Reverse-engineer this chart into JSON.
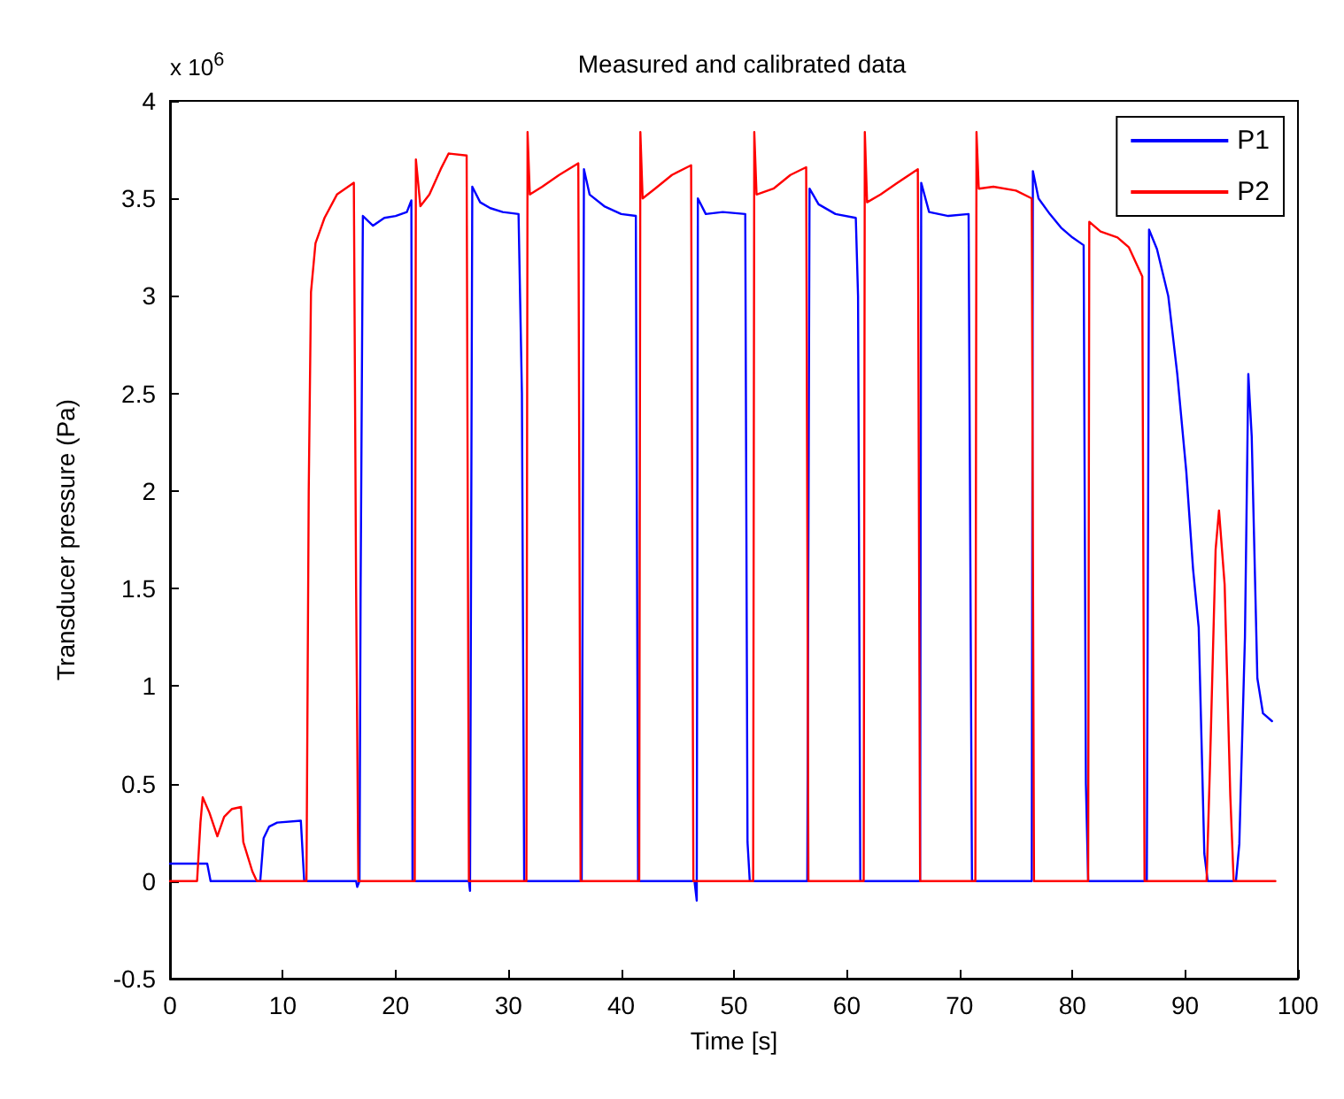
{
  "chart_data": {
    "type": "line",
    "title": "Measured and calibrated data",
    "xlabel": "Time [s]",
    "ylabel": "Transducer pressure (Pa)",
    "annotations": [
      "x 10$^{6}$"
    ],
    "xlim": [
      0,
      100
    ],
    "xticks": [
      0,
      10,
      20,
      30,
      40,
      50,
      60,
      70,
      80,
      90,
      100
    ],
    "ylim": [
      -0.5,
      4
    ],
    "yticks": [
      -0.5,
      0,
      0.5,
      1,
      1.5,
      2,
      2.5,
      3,
      3.5,
      4
    ],
    "grid": false,
    "legend": "top right",
    "marker": "none",
    "line_style": "solid",
    "series": [
      {
        "name": "P1",
        "color": "#0000ff",
        "x": [
          0,
          3.3,
          3.6,
          8,
          8.3,
          8.8,
          9.5,
          11.6,
          11.9,
          16.5,
          16.6,
          16.8,
          16.9,
          17.1,
          18,
          19,
          20,
          21,
          21.4,
          21.5,
          26.5,
          26.6,
          26.8,
          27.5,
          28.4,
          29.5,
          30.9,
          31.2,
          31.4,
          36.5,
          36.7,
          37.2,
          38.5,
          40,
          41.3,
          41.5,
          46.5,
          46.7,
          46.8,
          47.5,
          49,
          51,
          51.2,
          51.4,
          56.5,
          56.7,
          57.5,
          59,
          60.8,
          61,
          61.2,
          66.5,
          66.6,
          67.3,
          69,
          70.8,
          71.1,
          76.4,
          76.5,
          77,
          78,
          79,
          80,
          81,
          81.2,
          81.4,
          86.6,
          86.8,
          87.5,
          88.5,
          89.3,
          90.1,
          90.7,
          91.2,
          91.7,
          92,
          94.5,
          94.8,
          95.3,
          95.6,
          95.9,
          96.4,
          96.9,
          97.7
        ],
        "values": [
          0.09,
          0.09,
          0,
          0,
          0.22,
          0.28,
          0.3,
          0.31,
          0,
          0,
          -0.03,
          0,
          1.5,
          3.41,
          3.36,
          3.4,
          3.41,
          3.43,
          3.49,
          0,
          0,
          -0.05,
          3.56,
          3.48,
          3.45,
          3.43,
          3.42,
          2.5,
          0,
          0,
          3.65,
          3.52,
          3.46,
          3.42,
          3.41,
          0,
          0,
          -0.1,
          3.5,
          3.42,
          3.43,
          3.42,
          0.2,
          0,
          0,
          3.55,
          3.47,
          3.42,
          3.4,
          3.0,
          0,
          0,
          3.58,
          3.43,
          3.41,
          3.42,
          0,
          0,
          3.64,
          3.5,
          3.42,
          3.35,
          3.3,
          3.26,
          0.5,
          0,
          0,
          3.34,
          3.24,
          3.0,
          2.6,
          2.1,
          1.6,
          1.3,
          0.14,
          0,
          0,
          0.19,
          1.25,
          2.6,
          2.28,
          1.04,
          0.86,
          0.82
        ]
      },
      {
        "name": "P2",
        "color": "#ff0000",
        "x": [
          0,
          2.4,
          2.7,
          2.9,
          3.5,
          4.2,
          4.8,
          5.5,
          6.3,
          6.5,
          7.3,
          7.7,
          12.1,
          12.3,
          12.5,
          12.9,
          13.7,
          14.8,
          16.3,
          16.5,
          16.7,
          21.7,
          21.8,
          22.2,
          23,
          24,
          24.7,
          26.3,
          26.5,
          31.6,
          31.7,
          31.9,
          33,
          34.5,
          36.2,
          36.4,
          41.6,
          41.7,
          41.9,
          43,
          44.5,
          46.2,
          46.4,
          51.7,
          51.8,
          52,
          53.5,
          55,
          56.4,
          56.6,
          61.5,
          61.6,
          61.8,
          63,
          64.5,
          66.3,
          66.5,
          71.4,
          71.5,
          71.7,
          73,
          75,
          76.4,
          76.6,
          81.4,
          81.5,
          82.5,
          84,
          85,
          86.2,
          86.4,
          91.9,
          92.2,
          92.7,
          93,
          93.5,
          94,
          94.3,
          98
        ],
        "values": [
          0,
          0,
          0.3,
          0.43,
          0.35,
          0.23,
          0.33,
          0.37,
          0.38,
          0.2,
          0.05,
          0,
          0,
          2.0,
          3.02,
          3.27,
          3.4,
          3.52,
          3.58,
          1.5,
          0,
          0,
          3.7,
          3.46,
          3.52,
          3.65,
          3.73,
          3.72,
          0,
          0,
          3.84,
          3.52,
          3.56,
          3.62,
          3.68,
          0,
          0,
          3.84,
          3.5,
          3.55,
          3.62,
          3.67,
          0,
          0,
          3.84,
          3.52,
          3.55,
          3.62,
          3.66,
          0,
          0,
          3.84,
          3.48,
          3.52,
          3.58,
          3.65,
          0,
          0,
          3.84,
          3.55,
          3.56,
          3.54,
          3.5,
          0,
          0,
          3.38,
          3.33,
          3.3,
          3.25,
          3.1,
          0,
          0,
          0.59,
          1.7,
          1.9,
          1.52,
          0.44,
          0,
          0
        ]
      }
    ]
  }
}
